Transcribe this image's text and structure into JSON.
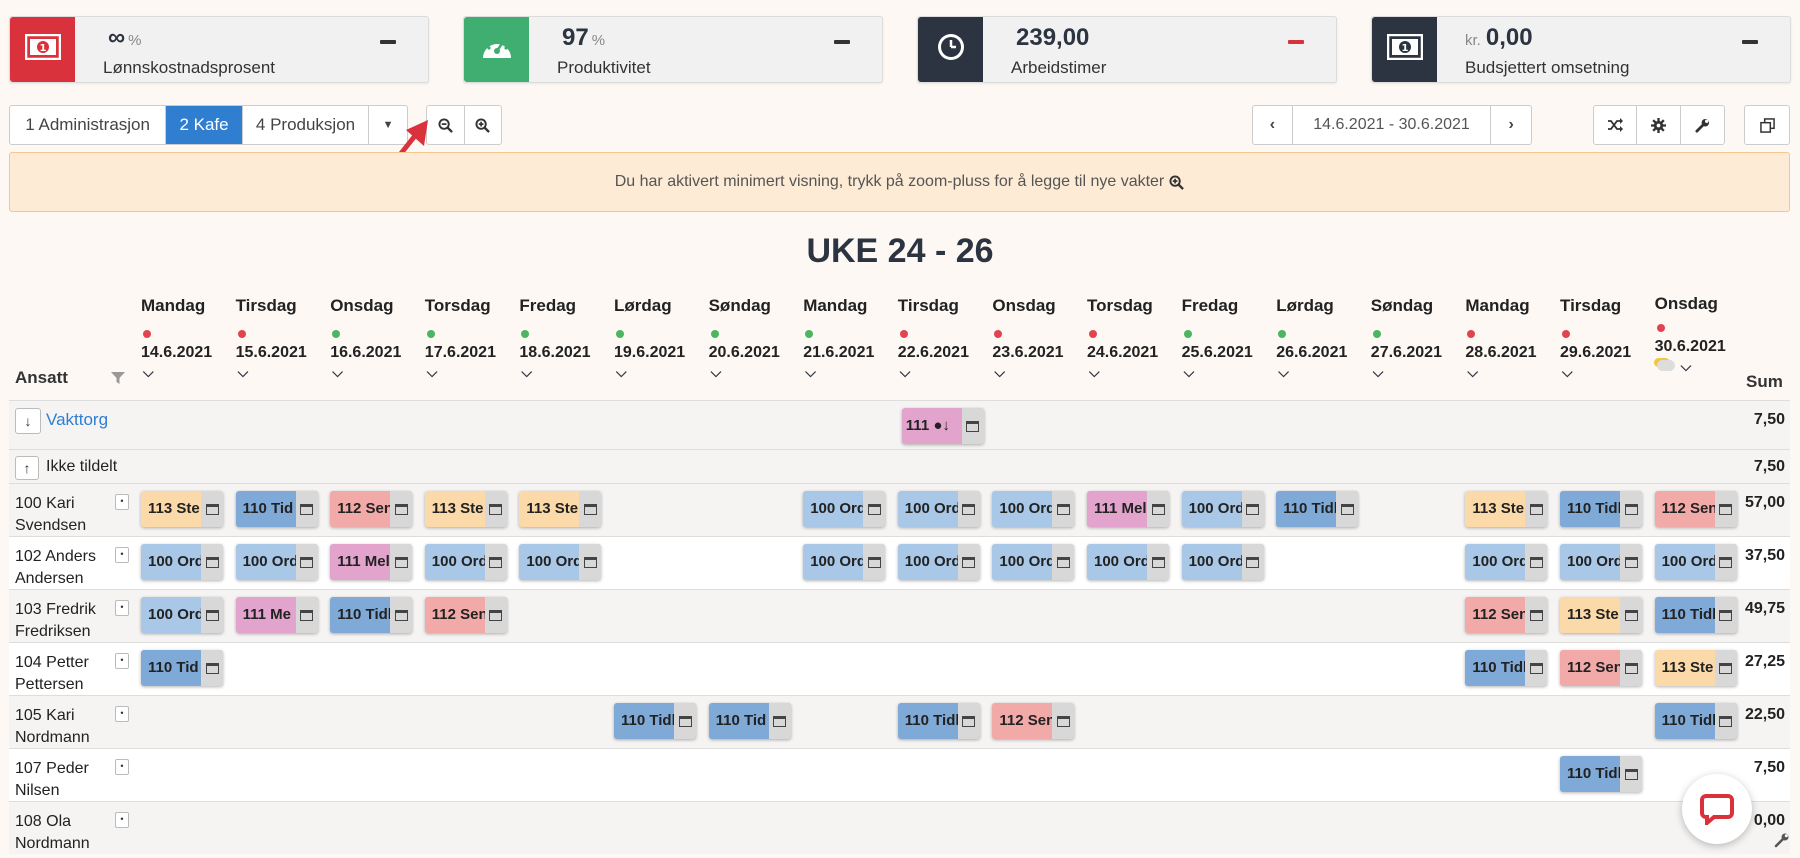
{
  "kpis": [
    {
      "value": "∞",
      "unit": "%",
      "pre": "",
      "label": "Lønnskostnadsprosent",
      "color": "#d9323c",
      "icon": "money-icon",
      "dash": "#333"
    },
    {
      "value": "97",
      "unit": "%",
      "pre": "",
      "label": "Produktivitet",
      "color": "#3fae70",
      "icon": "speedometer-icon",
      "dash": "#333"
    },
    {
      "value": "239,00",
      "unit": "",
      "pre": "",
      "label": "Arbeidstimer",
      "color": "#2b3440",
      "icon": "clock-icon",
      "dash": "#d9323c"
    },
    {
      "value": "0,00",
      "unit": "",
      "pre": "kr.",
      "label": "Budsjettert omsetning",
      "color": "#2b3440",
      "icon": "money-icon",
      "dash": "#333"
    }
  ],
  "departments": [
    "1 Administrasjon",
    "2 Kafe",
    "4 Produksjon"
  ],
  "date_range": "14.6.2021 - 30.6.2021",
  "alert": "Du har aktivert minimert visning, trykk på zoom-pluss for å legge til nye vakter",
  "week_title": "UKE 24 - 26",
  "ansatt_label": "Ansatt",
  "sum_label": "Sum",
  "days": [
    {
      "name": "Mandag",
      "date": "14.6.2021",
      "status": "red"
    },
    {
      "name": "Tirsdag",
      "date": "15.6.2021",
      "status": "red"
    },
    {
      "name": "Onsdag",
      "date": "16.6.2021",
      "status": "green"
    },
    {
      "name": "Torsdag",
      "date": "17.6.2021",
      "status": "green"
    },
    {
      "name": "Fredag",
      "date": "18.6.2021",
      "status": "green"
    },
    {
      "name": "Lørdag",
      "date": "19.6.2021",
      "status": "green"
    },
    {
      "name": "Søndag",
      "date": "20.6.2021",
      "status": "green"
    },
    {
      "name": "Mandag",
      "date": "21.6.2021",
      "status": "green"
    },
    {
      "name": "Tirsdag",
      "date": "22.6.2021",
      "status": "red"
    },
    {
      "name": "Onsdag",
      "date": "23.6.2021",
      "status": "red"
    },
    {
      "name": "Torsdag",
      "date": "24.6.2021",
      "status": "red"
    },
    {
      "name": "Fredag",
      "date": "25.6.2021",
      "status": "green"
    },
    {
      "name": "Lørdag",
      "date": "26.6.2021",
      "status": "green"
    },
    {
      "name": "Søndag",
      "date": "27.6.2021",
      "status": "green"
    },
    {
      "name": "Mandag",
      "date": "28.6.2021",
      "status": "red"
    },
    {
      "name": "Tirsdag",
      "date": "29.6.2021",
      "status": "red"
    },
    {
      "name": "Onsdag",
      "date": "30.6.2021",
      "status": "red"
    }
  ],
  "vakttorg": {
    "label": "Vakttorg",
    "sum": "7,50",
    "shift": {
      "day": 8,
      "text": "111"
    }
  },
  "ikke_tildelt": {
    "label": "Ikke tildelt",
    "sum": "7,50"
  },
  "shift_colors": {
    "113": "#fbd9a8",
    "110": "#7fa9d6",
    "112": "#f2aaa8",
    "100": "#a9c7e6",
    "111": "#e2a4cc"
  },
  "shift_labels": {
    "113": "113 Ste",
    "110": "110 Tidl",
    "112": "112 Sen",
    "100": "100 Ord",
    "111": "111 Mel"
  },
  "employees": [
    {
      "name": "100 Kari Svendsen",
      "sum": "57,00",
      "shifts": [
        [
          0,
          "113",
          "113 Ste"
        ],
        [
          1,
          "110",
          "110 Tid"
        ],
        [
          2,
          "112",
          "112 Sen"
        ],
        [
          3,
          "113",
          "113 Ste"
        ],
        [
          4,
          "113",
          "113 Ste"
        ],
        [
          7,
          "100",
          "100 Ord"
        ],
        [
          8,
          "100",
          "100 Ord"
        ],
        [
          9,
          "100",
          "100 Ord"
        ],
        [
          10,
          "111",
          "111 Mel"
        ],
        [
          11,
          "100",
          "100 Ord"
        ],
        [
          12,
          "110",
          "110 Tidl"
        ],
        [
          14,
          "113",
          "113 Ste"
        ],
        [
          15,
          "110",
          "110 Tidl"
        ],
        [
          16,
          "112",
          "112 Sen"
        ]
      ]
    },
    {
      "name": "102 Anders Andersen",
      "sum": "37,50",
      "shifts": [
        [
          0,
          "100",
          "100 Ord"
        ],
        [
          1,
          "100",
          "100 Ord"
        ],
        [
          2,
          "111",
          "111 Mel"
        ],
        [
          3,
          "100",
          "100 Ord"
        ],
        [
          4,
          "100",
          "100 Ord"
        ],
        [
          7,
          "100",
          "100 Ord"
        ],
        [
          8,
          "100",
          "100 Ord"
        ],
        [
          9,
          "100",
          "100 Ord"
        ],
        [
          10,
          "100",
          "100 Ord"
        ],
        [
          11,
          "100",
          "100 Ord"
        ],
        [
          14,
          "100",
          "100 Ord"
        ],
        [
          15,
          "100",
          "100 Ord"
        ],
        [
          16,
          "100",
          "100 Ord"
        ]
      ]
    },
    {
      "name": "103 Fredrik Fredriksen",
      "sum": "49,75",
      "shifts": [
        [
          0,
          "100",
          "100 Ord"
        ],
        [
          1,
          "111",
          "111 Me"
        ],
        [
          2,
          "110",
          "110 Tidl"
        ],
        [
          3,
          "112",
          "112 Sen"
        ],
        [
          14,
          "112",
          "112 Sen"
        ],
        [
          15,
          "113",
          "113 Ste"
        ],
        [
          16,
          "110",
          "110 Tidl"
        ]
      ]
    },
    {
      "name": "104 Petter Pettersen",
      "sum": "27,25",
      "shifts": [
        [
          0,
          "110",
          "110 Tid"
        ],
        [
          14,
          "110",
          "110 Tidl"
        ],
        [
          15,
          "112",
          "112 Sen"
        ],
        [
          16,
          "113",
          "113 Ste"
        ]
      ]
    },
    {
      "name": "105 Kari Nordmann",
      "sum": "22,50",
      "shifts": [
        [
          5,
          "110",
          "110 Tidl"
        ],
        [
          6,
          "110",
          "110 Tid"
        ],
        [
          8,
          "110",
          "110 Tidl"
        ],
        [
          9,
          "112",
          "112 Sen"
        ],
        [
          16,
          "110",
          "110 Tidl"
        ]
      ]
    },
    {
      "name": "107 Peder Nilsen",
      "sum": "7,50",
      "shifts": [
        [
          15,
          "110",
          "110 Tidl"
        ]
      ]
    },
    {
      "name": "108 Ola Nordmann",
      "sum": "0,00",
      "shifts": []
    }
  ]
}
